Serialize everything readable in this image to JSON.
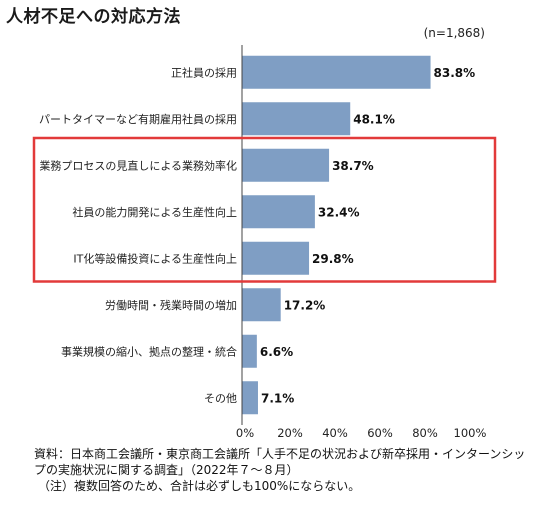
{
  "chart_data": {
    "type": "bar",
    "orientation": "horizontal",
    "title": "人材不足への対応方法",
    "sample_note": "(n=1,868)",
    "categories": [
      "正社員の採用",
      "パートタイマーなど有期雇用社員の採用",
      "業務プロセスの見直しによる業務効率化",
      "社員の能力開発による生産性向上",
      "IT化等設備投資による生産性向上",
      "労働時間・残業時間の増加",
      "事業規模の縮小、拠点の整理・統合",
      "その他"
    ],
    "values": [
      83.8,
      48.1,
      38.7,
      32.4,
      29.8,
      17.2,
      6.6,
      7.1
    ],
    "value_labels": [
      "83.8%",
      "48.1%",
      "38.7%",
      "32.4%",
      "29.8%",
      "17.2%",
      "6.6%",
      "7.1%"
    ],
    "xlim": [
      0,
      100
    ],
    "x_ticks": [
      "0%",
      "20%",
      "40%",
      "60%",
      "80%",
      "100%"
    ],
    "highlighted_categories": [
      2,
      3,
      4
    ],
    "bar_color": "#7f9ec4",
    "highlight_color": "#e23a3a",
    "grid": false,
    "legend": "none"
  },
  "footnote": {
    "line1": "資料：日本商工会議所・東京商工会議所「人手不足の状況および新卒採用・インターンシップの実施状況に関する調査」（2022年７～８月）",
    "line2": "（注）複数回答のため、合計は必ずしも100%にならない。"
  }
}
